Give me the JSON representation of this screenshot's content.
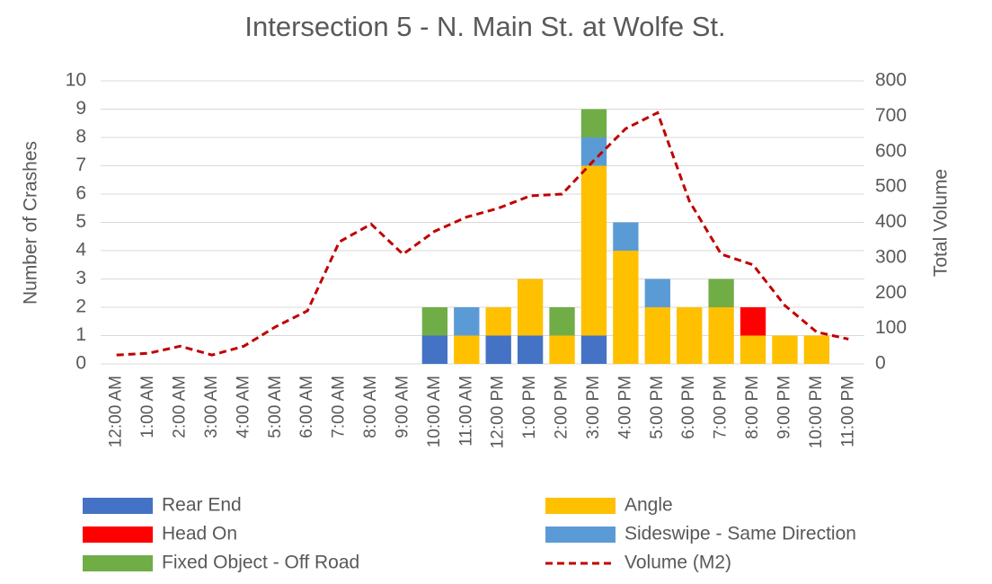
{
  "chart_data": {
    "type": "bar",
    "stacked": true,
    "title": "Intersection 5 - N. Main St. at Wolfe St.",
    "y_label": "Number of Crashes",
    "y2_label": "Total Volume",
    "categories": [
      "12:00 AM",
      "1:00 AM",
      "2:00 AM",
      "3:00 AM",
      "4:00 AM",
      "5:00 AM",
      "6:00 AM",
      "7:00 AM",
      "8:00 AM",
      "9:00 AM",
      "10:00 AM",
      "11:00 AM",
      "12:00 PM",
      "1:00 PM",
      "2:00 PM",
      "3:00 PM",
      "4:00 PM",
      "5:00 PM",
      "6:00 PM",
      "7:00 PM",
      "8:00 PM",
      "9:00 PM",
      "10:00 PM",
      "11:00 PM"
    ],
    "series": [
      {
        "name": "Rear End",
        "color": "#4472c4",
        "type": "bar",
        "values": [
          0,
          0,
          0,
          0,
          0,
          0,
          0,
          0,
          0,
          0,
          1,
          0,
          1,
          1,
          0,
          1,
          0,
          0,
          0,
          0,
          0,
          0,
          0,
          0
        ]
      },
      {
        "name": "Angle",
        "color": "#ffc000",
        "type": "bar",
        "values": [
          0,
          0,
          0,
          0,
          0,
          0,
          0,
          0,
          0,
          0,
          0,
          1,
          1,
          2,
          1,
          6,
          4,
          2,
          2,
          2,
          1,
          1,
          1,
          0
        ]
      },
      {
        "name": "Head On",
        "color": "#ff0000",
        "type": "bar",
        "values": [
          0,
          0,
          0,
          0,
          0,
          0,
          0,
          0,
          0,
          0,
          0,
          0,
          0,
          0,
          0,
          0,
          0,
          0,
          0,
          0,
          1,
          0,
          0,
          0
        ]
      },
      {
        "name": "Sideswipe - Same Direction",
        "color": "#5b9bd5",
        "type": "bar",
        "values": [
          0,
          0,
          0,
          0,
          0,
          0,
          0,
          0,
          0,
          0,
          0,
          1,
          0,
          0,
          0,
          1,
          1,
          1,
          0,
          0,
          0,
          0,
          0,
          0
        ]
      },
      {
        "name": "Fixed Object - Off Road",
        "color": "#70ad47",
        "type": "bar",
        "values": [
          0,
          0,
          0,
          0,
          0,
          0,
          0,
          0,
          0,
          0,
          1,
          0,
          0,
          0,
          1,
          1,
          0,
          0,
          0,
          1,
          0,
          0,
          0,
          0
        ]
      },
      {
        "name": "Volume (M2)",
        "color": "#c00000",
        "type": "line",
        "dashed": true,
        "axis": "y2",
        "values": [
          25,
          30,
          50,
          25,
          50,
          105,
          150,
          345,
          395,
          310,
          375,
          415,
          440,
          475,
          480,
          575,
          665,
          710,
          460,
          310,
          280,
          165,
          90,
          70
        ]
      }
    ],
    "ylim": [
      0,
      10
    ],
    "yticks": [
      0,
      1,
      2,
      3,
      4,
      5,
      6,
      7,
      8,
      9,
      10
    ],
    "y2lim": [
      0,
      800
    ],
    "y2ticks": [
      0,
      100,
      200,
      300,
      400,
      500,
      600,
      700,
      800
    ],
    "grid": true,
    "legend": "bottom"
  }
}
